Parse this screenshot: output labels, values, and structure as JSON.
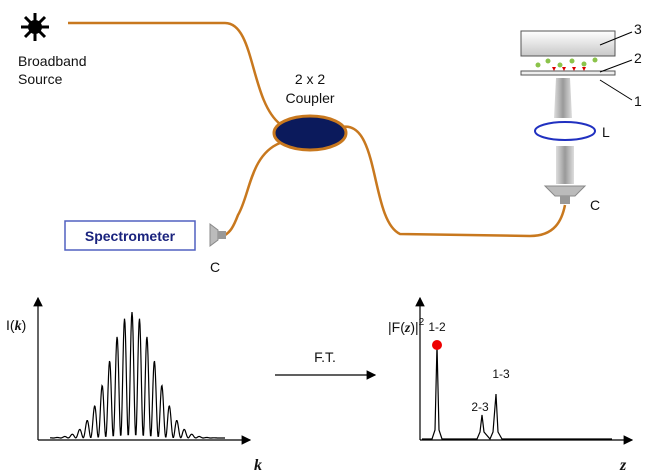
{
  "source": {
    "label_lines": [
      "Broadband",
      "Source"
    ]
  },
  "coupler": {
    "label_lines": [
      "2 x 2",
      "Coupler"
    ]
  },
  "spectrometer": {
    "label": "Spectrometer"
  },
  "collimators": [
    "C",
    "C"
  ],
  "lens": "L",
  "sample_labels": [
    "3",
    "2",
    "1"
  ],
  "plot_left": {
    "y_label": {
      "prefix": "I(",
      "var": "k",
      "suffix": ")"
    },
    "x_label": "k"
  },
  "transform": "F.T.",
  "plot_right": {
    "y_label": {
      "prefix": "|F(",
      "var": "z",
      "suffix": ")|",
      "sup": "2"
    },
    "x_label": "z",
    "peak_labels": [
      "1-2",
      "2-3",
      "1-3"
    ]
  }
}
